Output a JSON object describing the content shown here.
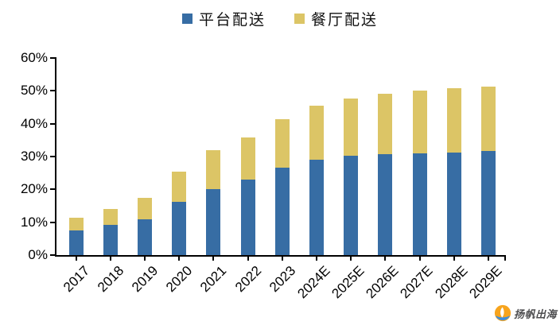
{
  "legend": {
    "items": [
      {
        "label": "平台配送",
        "color": "#376DA4"
      },
      {
        "label": "餐厅配送",
        "color": "#DCC566"
      }
    ]
  },
  "chart_data": {
    "type": "bar",
    "stacked": true,
    "title": "",
    "xlabel": "",
    "ylabel": "",
    "categories": [
      "2017",
      "2018",
      "2019",
      "2020",
      "2021",
      "2022",
      "2023",
      "2024E",
      "2025E",
      "2026E",
      "2027E",
      "2028E",
      "2029E"
    ],
    "series": [
      {
        "name": "平台配送",
        "color": "#376DA4",
        "values": [
          7.5,
          9.2,
          11.0,
          16.3,
          20.1,
          23.0,
          26.6,
          29.0,
          30.2,
          30.8,
          31.0,
          31.3,
          31.8
        ]
      },
      {
        "name": "餐厅配送",
        "color": "#DCC566",
        "values": [
          3.9,
          4.8,
          6.4,
          9.1,
          11.8,
          12.7,
          14.8,
          16.4,
          17.5,
          18.4,
          19.0,
          19.5,
          19.5
        ]
      }
    ],
    "totals": [
      11.4,
      14.0,
      17.4,
      25.4,
      31.9,
      35.7,
      41.4,
      45.4,
      47.7,
      49.2,
      50.0,
      50.8,
      51.3
    ],
    "ylim": [
      0,
      60
    ],
    "yticks": [
      "0%",
      "10%",
      "20%",
      "30%",
      "40%",
      "50%",
      "60%"
    ],
    "grid": false,
    "legend_position": "top-center",
    "axis_color": "#000000"
  },
  "watermark": {
    "text": "扬帆出海"
  }
}
